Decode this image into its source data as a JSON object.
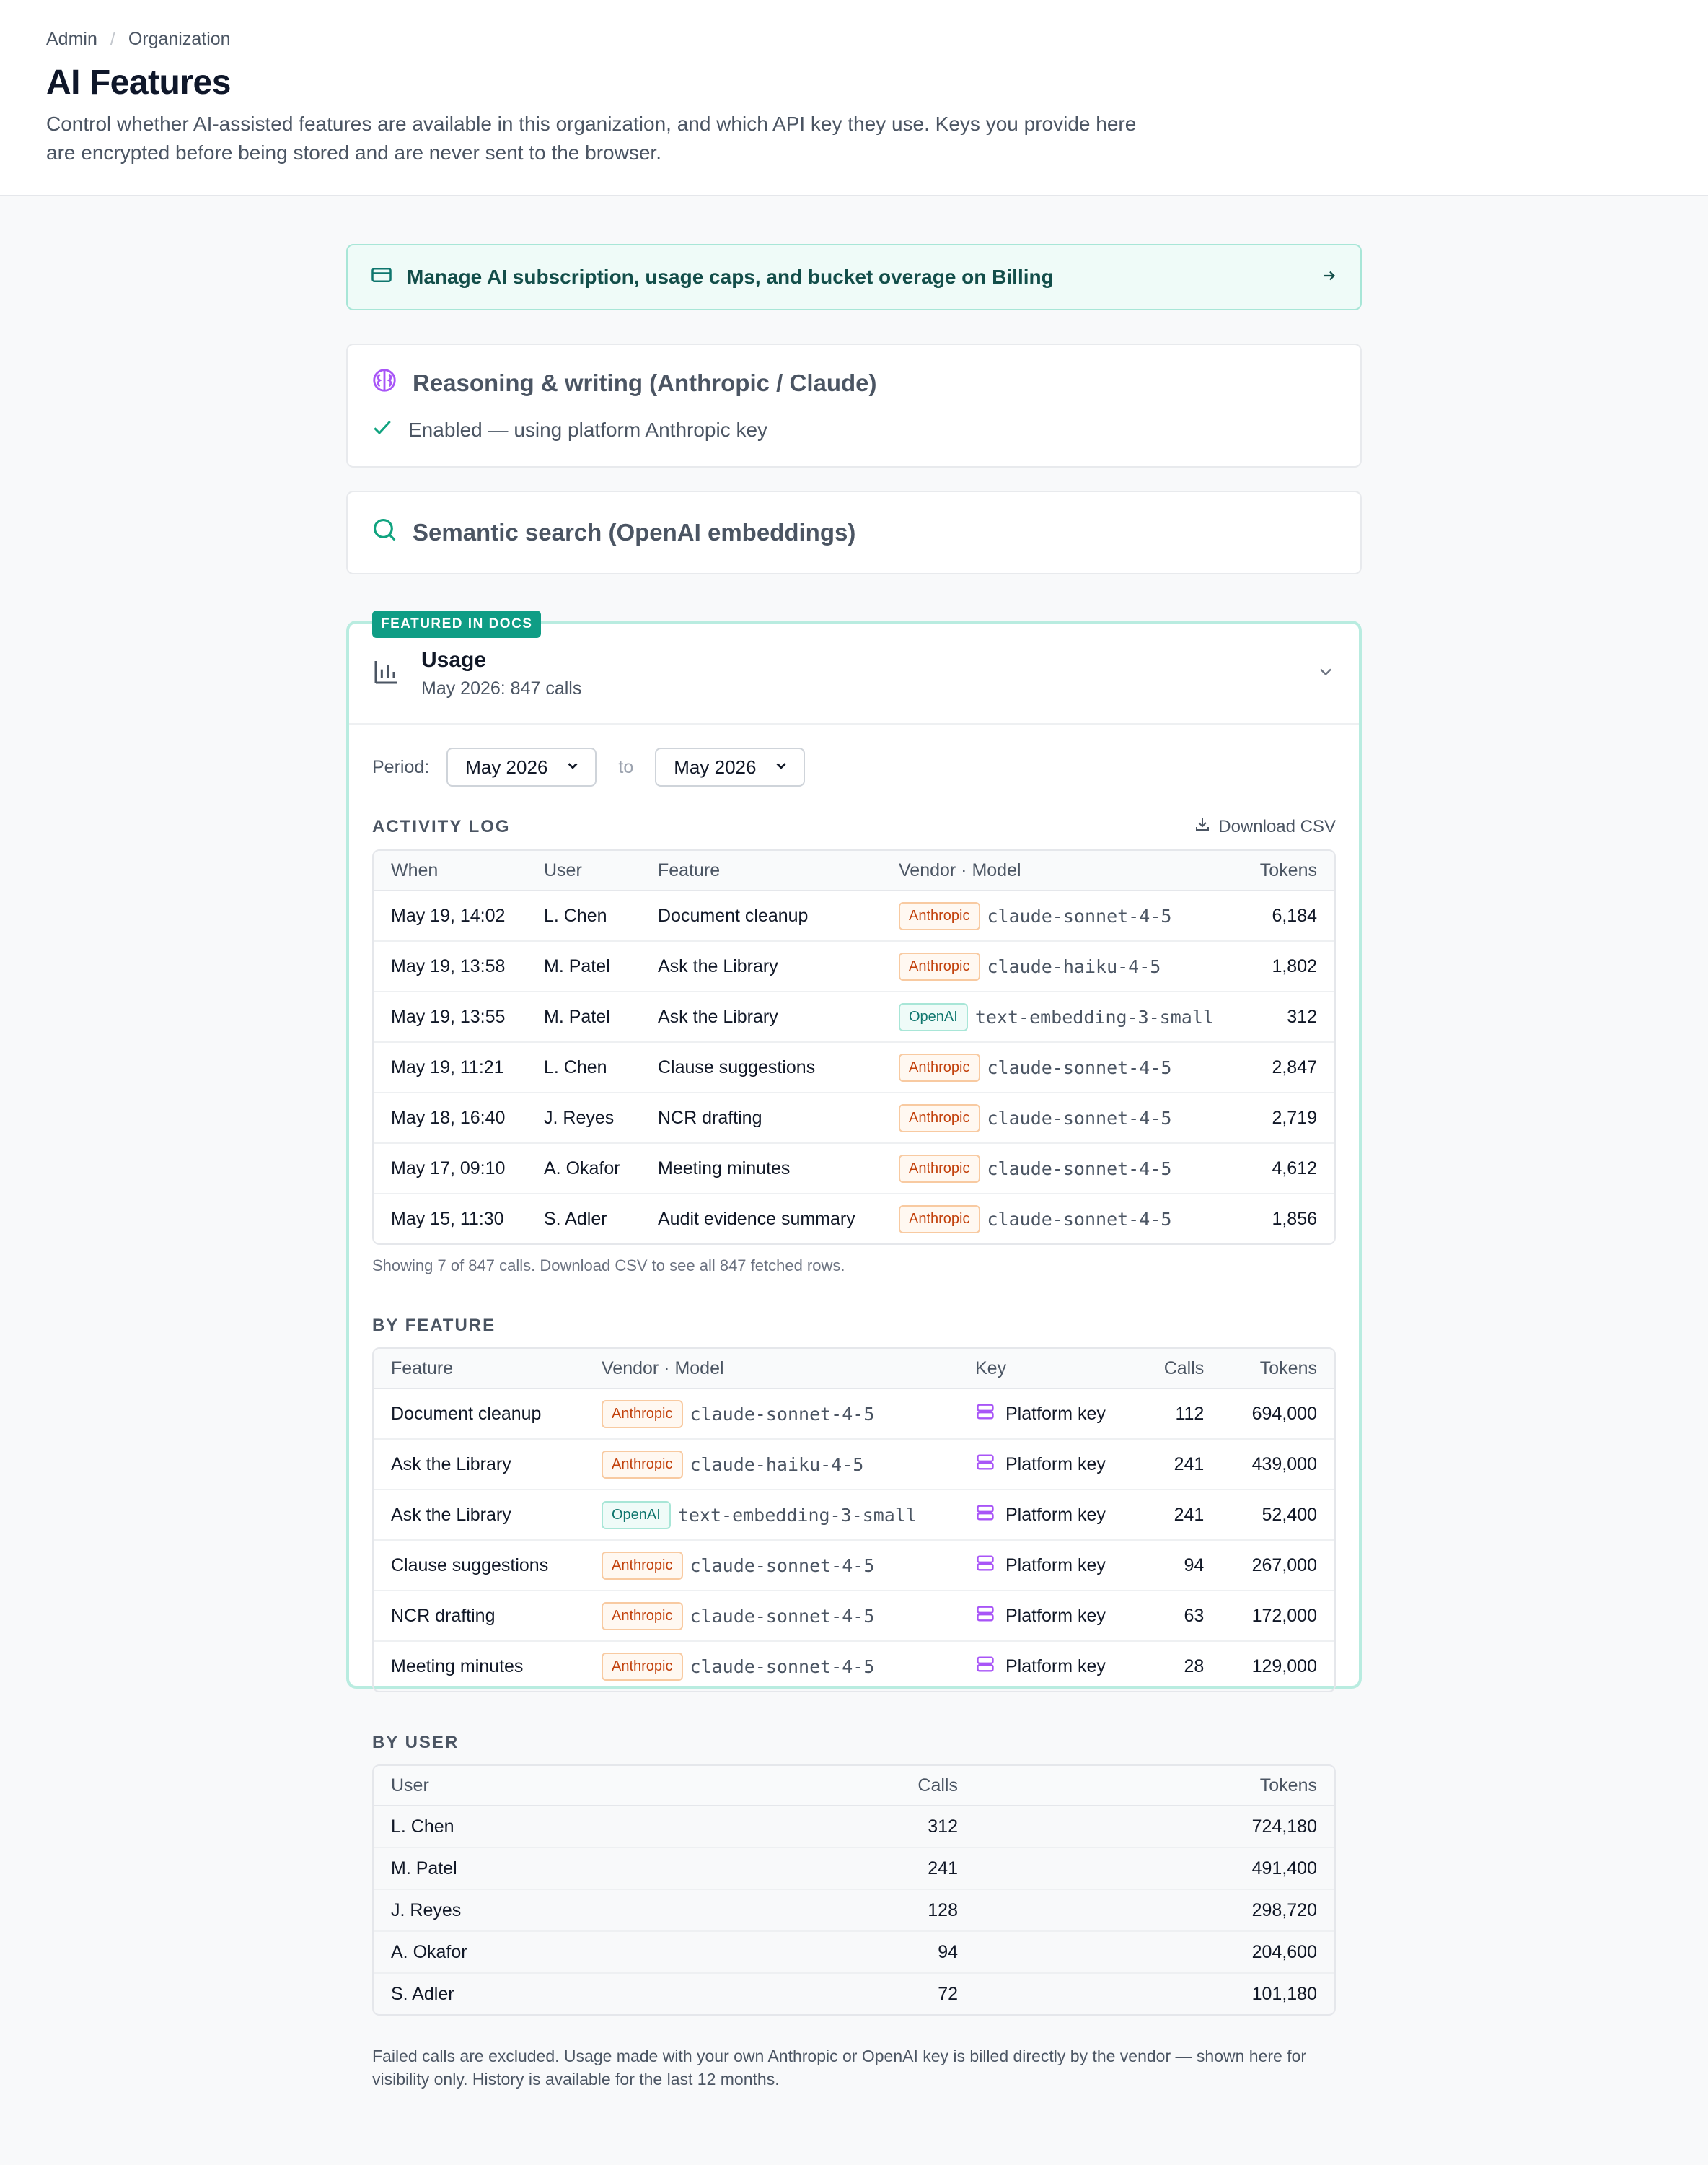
{
  "breadcrumb": {
    "root": "Admin",
    "separator": "/",
    "current": "Organization"
  },
  "page": {
    "title": "AI Features",
    "description": "Control whether AI-assisted features are available in this organization, and which API key they use. Keys you provide here are encrypted before being stored and are never sent to the browser."
  },
  "billing_banner": {
    "label": "Manage AI subscription, usage caps, and bucket overage on Billing"
  },
  "features": {
    "reasoning": {
      "title": "Reasoning & writing (Anthropic / Claude)",
      "status": "Enabled — using platform Anthropic key"
    },
    "search": {
      "title": "Semantic search (OpenAI embeddings)"
    }
  },
  "usage": {
    "badge": "FEATURED IN DOCS",
    "title": "Usage",
    "subtitle": "May 2026: 847 calls",
    "period_label": "Period:",
    "period_from": "May 2026",
    "period_to_label": "to",
    "period_to": "May 2026",
    "activity_log": {
      "title": "ACTIVITY LOG",
      "download_label": "Download CSV",
      "columns": [
        "When",
        "User",
        "Feature",
        "Vendor · Model",
        "Tokens"
      ],
      "rows": [
        {
          "when": "May 19, 14:02",
          "user": "L. Chen",
          "feature": "Document cleanup",
          "vendor": "Anthropic",
          "model": "claude-sonnet-4-5",
          "tokens": "6,184"
        },
        {
          "when": "May 19, 13:58",
          "user": "M. Patel",
          "feature": "Ask the Library",
          "vendor": "Anthropic",
          "model": "claude-haiku-4-5",
          "tokens": "1,802"
        },
        {
          "when": "May 19, 13:55",
          "user": "M. Patel",
          "feature": "Ask the Library",
          "vendor": "OpenAI",
          "model": "text-embedding-3-small",
          "tokens": "312"
        },
        {
          "when": "May 19, 11:21",
          "user": "L. Chen",
          "feature": "Clause suggestions",
          "vendor": "Anthropic",
          "model": "claude-sonnet-4-5",
          "tokens": "2,847"
        },
        {
          "when": "May 18, 16:40",
          "user": "J. Reyes",
          "feature": "NCR drafting",
          "vendor": "Anthropic",
          "model": "claude-sonnet-4-5",
          "tokens": "2,719"
        },
        {
          "when": "May 17, 09:10",
          "user": "A. Okafor",
          "feature": "Meeting minutes",
          "vendor": "Anthropic",
          "model": "claude-sonnet-4-5",
          "tokens": "4,612"
        },
        {
          "when": "May 15, 11:30",
          "user": "S. Adler",
          "feature": "Audit evidence summary",
          "vendor": "Anthropic",
          "model": "claude-sonnet-4-5",
          "tokens": "1,856"
        }
      ],
      "footnote": "Showing 7 of 847 calls. Download CSV to see all 847 fetched rows."
    },
    "by_feature": {
      "title": "BY FEATURE",
      "columns": [
        "Feature",
        "Vendor · Model",
        "Key",
        "Calls",
        "Tokens"
      ],
      "rows": [
        {
          "feature": "Document cleanup",
          "vendor": "Anthropic",
          "model": "claude-sonnet-4-5",
          "key": "Platform key",
          "calls": "112",
          "tokens": "694,000"
        },
        {
          "feature": "Ask the Library",
          "vendor": "Anthropic",
          "model": "claude-haiku-4-5",
          "key": "Platform key",
          "calls": "241",
          "tokens": "439,000"
        },
        {
          "feature": "Ask the Library",
          "vendor": "OpenAI",
          "model": "text-embedding-3-small",
          "key": "Platform key",
          "calls": "241",
          "tokens": "52,400"
        },
        {
          "feature": "Clause suggestions",
          "vendor": "Anthropic",
          "model": "claude-sonnet-4-5",
          "key": "Platform key",
          "calls": "94",
          "tokens": "267,000"
        },
        {
          "feature": "NCR drafting",
          "vendor": "Anthropic",
          "model": "claude-sonnet-4-5",
          "key": "Platform key",
          "calls": "63",
          "tokens": "172,000"
        },
        {
          "feature": "Meeting minutes",
          "vendor": "Anthropic",
          "model": "claude-sonnet-4-5",
          "key": "Platform key",
          "calls": "28",
          "tokens": "129,000"
        }
      ]
    },
    "by_user": {
      "title": "BY USER",
      "columns": [
        "User",
        "Calls",
        "Tokens"
      ],
      "rows": [
        {
          "user": "L. Chen",
          "calls": "312",
          "tokens": "724,180"
        },
        {
          "user": "M. Patel",
          "calls": "241",
          "tokens": "491,400"
        },
        {
          "user": "J. Reyes",
          "calls": "128",
          "tokens": "298,720"
        },
        {
          "user": "A. Okafor",
          "calls": "94",
          "tokens": "204,600"
        },
        {
          "user": "S. Adler",
          "calls": "72",
          "tokens": "101,180"
        }
      ]
    },
    "final_note": "Failed calls are excluded. Usage made with your own Anthropic or OpenAI key is billed directly by the vendor — shown here for visibility only. History is available for the last 12 months."
  },
  "icons": {
    "billing": "credit-card-icon",
    "arrow": "arrow-right-icon",
    "reasoning": "brain-icon",
    "check": "check-icon",
    "search": "search-icon",
    "chart": "bar-chart-icon",
    "chevron": "chevron-down-icon",
    "download": "download-icon",
    "key": "server-key-icon"
  },
  "colors": {
    "accent": "#0f9d85",
    "anthropic": "#c2410c",
    "openai": "#0f766e",
    "key_icon": "#a855f7"
  }
}
